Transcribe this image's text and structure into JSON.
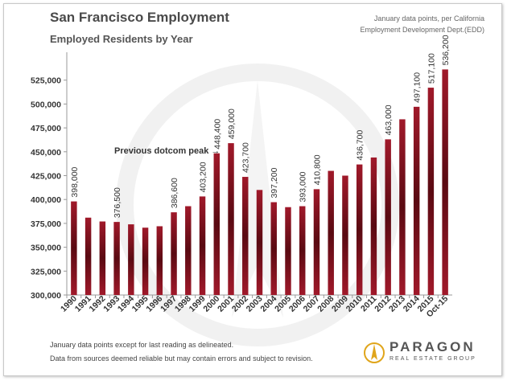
{
  "header": {
    "title": "San Francisco Employment",
    "subtitle": "Employed Residents by Year",
    "source_line1": "January data points, per California",
    "source_line2": "Employment Development Dept.(EDD)"
  },
  "footer": {
    "note1": "January data points except for last reading as delineated.",
    "note2": "Data from sources deemed reliable but may contain errors and subject to revision."
  },
  "logo": {
    "name": "PARAGON",
    "tagline": "REAL ESTATE GROUP"
  },
  "colors": {
    "bar": "#a0192a",
    "bar_dark": "#5a0a12",
    "logo_gold": "#e0a51b"
  },
  "chart_data": {
    "type": "bar",
    "categories": [
      "1990",
      "1991",
      "1992",
      "1993",
      "1994",
      "1995",
      "1996",
      "1997",
      "1998",
      "1999",
      "2000",
      "2001",
      "2002",
      "2003",
      "2004",
      "2005",
      "2006",
      "2007",
      "2008",
      "2009",
      "2010",
      "2011",
      "2012",
      "2013",
      "2014",
      "2015",
      "Oct-15"
    ],
    "values": [
      398000,
      381000,
      377000,
      376500,
      374000,
      370500,
      372000,
      386600,
      393000,
      403200,
      448400,
      459000,
      423700,
      410000,
      397200,
      392000,
      393000,
      410800,
      430000,
      425000,
      436700,
      444000,
      463000,
      484000,
      497100,
      517100,
      536200
    ],
    "data_labels": [
      "398,000",
      "",
      "",
      "376,500",
      "",
      "",
      "",
      "386,600",
      "",
      "403,200",
      "448,400",
      "459,000",
      "423,700",
      "",
      "397,200",
      "",
      "393,000",
      "410,800",
      "",
      "",
      "436,700",
      "",
      "463,000",
      "",
      "497,100",
      "517,100",
      "536,200"
    ],
    "ylim": [
      300000,
      550000
    ],
    "yticks": [
      300000,
      325000,
      350000,
      375000,
      400000,
      425000,
      450000,
      475000,
      500000,
      525000
    ],
    "ytick_labels": [
      "300,000",
      "325,000",
      "350,000",
      "375,000",
      "400,000",
      "425,000",
      "450,000",
      "475,000",
      "500,000",
      "525,000"
    ],
    "annotation": {
      "text": "Previous dotcom peak",
      "arrow": "→",
      "points_to": "2001"
    },
    "grid": false,
    "xlabel": "",
    "ylabel": ""
  }
}
